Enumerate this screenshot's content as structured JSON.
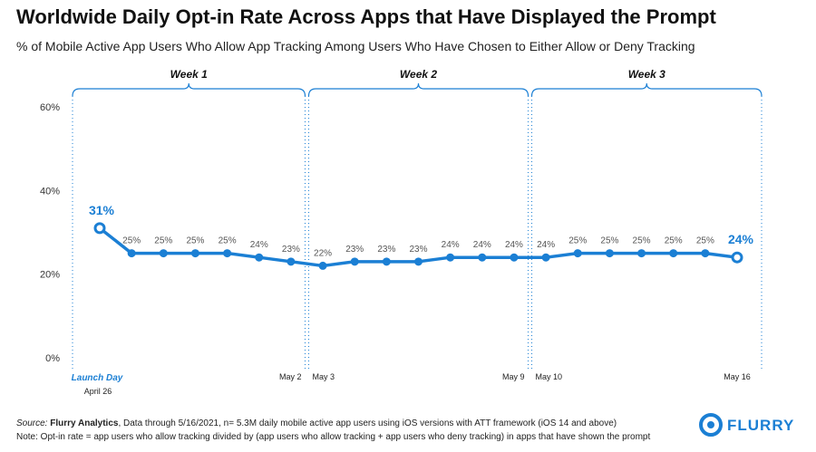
{
  "chart_data": {
    "type": "line",
    "title": "Worldwide Daily Opt-in Rate Across Apps that Have Displayed the Prompt",
    "subtitle": "% of Mobile Active App Users Who Allow App Tracking Among Users Who Have Chosen to Either Allow or Deny Tracking",
    "categories": [
      "April 26",
      null,
      null,
      null,
      null,
      null,
      "May 2",
      "May 3",
      null,
      null,
      null,
      null,
      null,
      "May 9",
      "May 10",
      null,
      null,
      null,
      null,
      null,
      "May 16"
    ],
    "series": [
      {
        "name": "Opt-in rate",
        "color": "#1b7fd4",
        "values": [
          31,
          25,
          25,
          25,
          25,
          24,
          23,
          22,
          23,
          23,
          23,
          24,
          24,
          24,
          24,
          25,
          25,
          25,
          25,
          25,
          24
        ],
        "value_labels": [
          "31%",
          "25%",
          "25%",
          "25%",
          "25%",
          "24%",
          "23%",
          "22%",
          "23%",
          "23%",
          "23%",
          "24%",
          "24%",
          "24%",
          "24%",
          "25%",
          "25%",
          "25%",
          "25%",
          "25%",
          "24%"
        ]
      }
    ],
    "ylim": [
      0,
      60
    ],
    "yticks": [
      {
        "value": 0,
        "label": "0%"
      },
      {
        "value": 20,
        "label": "20%"
      },
      {
        "value": 40,
        "label": "40%"
      },
      {
        "value": 60,
        "label": "60%"
      }
    ],
    "grid": false,
    "weeks": [
      "Week 1",
      "Week 2",
      "Week 3"
    ],
    "launch_label": "Launch Day",
    "source_label": "Source:",
    "source_name": "Flurry Analytics",
    "source_text": ", Data through 5/16/2021, n= 5.3M daily mobile active app users using iOS versions with ATT framework (iOS 14 and above)",
    "note": "Note: Opt-in rate = app users who allow tracking divided by (app users who allow tracking + app users who deny tracking) in apps that have shown the prompt",
    "logo": "FLURRY"
  }
}
